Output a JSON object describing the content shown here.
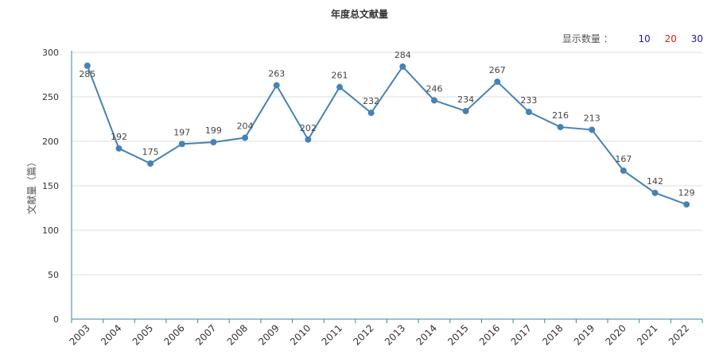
{
  "chart_data": {
    "type": "line",
    "title": "年度总文献量",
    "xlabel": "",
    "ylabel": "文献量（篇）",
    "categories": [
      "2003",
      "2004",
      "2005",
      "2006",
      "2007",
      "2008",
      "2009",
      "2010",
      "2011",
      "2012",
      "2013",
      "2014",
      "2015",
      "2016",
      "2017",
      "2018",
      "2019",
      "2020",
      "2021",
      "2022"
    ],
    "series": [
      {
        "values": [
          285,
          192,
          175,
          197,
          199,
          204,
          263,
          202,
          261,
          232,
          284,
          246,
          234,
          267,
          233,
          216,
          213,
          167,
          142,
          129
        ]
      }
    ],
    "ylim": [
      0,
      300
    ],
    "yticks": [
      0,
      50,
      100,
      150,
      200,
      250,
      300
    ],
    "grid": true,
    "data_labels": true,
    "line_color": "#4682b4",
    "axis_color": "#2f8aa0"
  },
  "controls": {
    "count_label": "显示数量 ：",
    "options": [
      {
        "label": "10",
        "color": "#1a1aa8"
      },
      {
        "label": "20",
        "color": "#cc2222"
      },
      {
        "label": "30",
        "color": "#1a1aa8"
      }
    ]
  }
}
